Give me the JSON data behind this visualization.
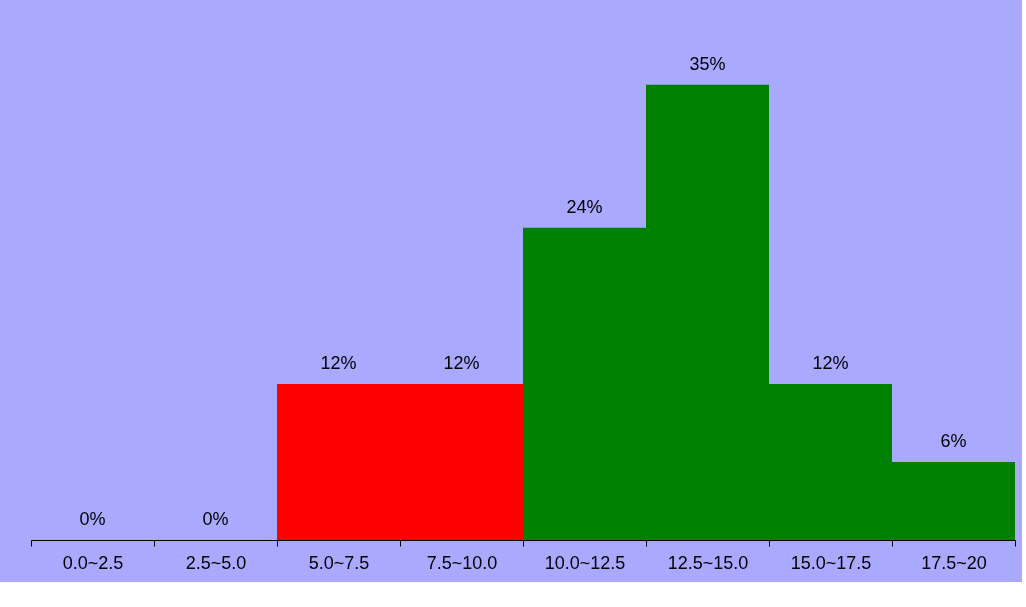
{
  "chart_data": {
    "type": "bar",
    "categories": [
      "0.0~2.5",
      "2.5~5.0",
      "5.0~7.5",
      "7.5~10.0",
      "10.0~12.5",
      "12.5~15.0",
      "15.0~17.5",
      "17.5~20"
    ],
    "values": [
      0,
      0,
      12,
      12,
      24,
      35,
      12,
      6
    ],
    "value_labels": [
      "0%",
      "0%",
      "12%",
      "12%",
      "24%",
      "35%",
      "12%",
      "6%"
    ],
    "colors": [
      "#008000",
      "#008000",
      "#ff0000",
      "#ff0000",
      "#008000",
      "#008000",
      "#008000",
      "#008000"
    ],
    "tick_labels": "x"
  }
}
